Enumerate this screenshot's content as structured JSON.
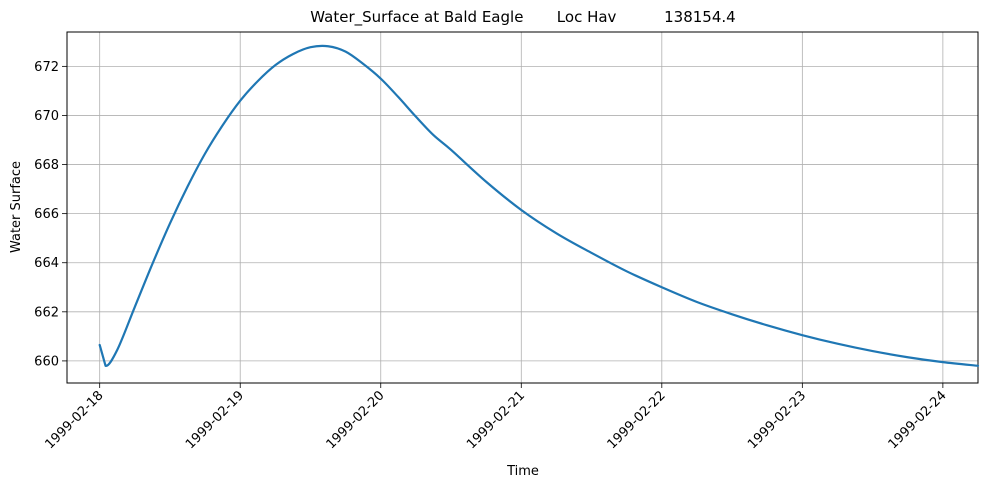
{
  "chart_data": {
    "type": "line",
    "title": "Water_Surface at Bald Eagle       Loc Hav          138154.4",
    "xlabel": "Time",
    "ylabel": "Water Surface",
    "xlim": [
      "1999-02-17T18:25",
      "1999-02-24T06:00"
    ],
    "ylim": [
      659.1,
      673.4
    ],
    "grid": true,
    "line_color": "#1f77b4",
    "x_ticks": [
      "1999-02-18",
      "1999-02-19",
      "1999-02-20",
      "1999-02-21",
      "1999-02-22",
      "1999-02-23",
      "1999-02-24"
    ],
    "y_ticks": [
      660,
      662,
      664,
      666,
      668,
      670,
      672
    ],
    "series": [
      {
        "x": [
          "1999-02-18T00:00",
          "1999-02-18T01:00",
          "1999-02-18T03:00",
          "1999-02-18T06:00",
          "1999-02-18T09:00",
          "1999-02-18T12:00",
          "1999-02-18T15:00",
          "1999-02-18T18:00",
          "1999-02-18T21:00",
          "1999-02-19T00:00",
          "1999-02-19T03:00",
          "1999-02-19T06:00",
          "1999-02-19T09:00",
          "1999-02-19T12:00",
          "1999-02-19T15:00",
          "1999-02-19T18:00",
          "1999-02-19T21:00",
          "1999-02-20T00:00",
          "1999-02-20T03:00",
          "1999-02-20T06:00",
          "1999-02-20T09:00",
          "1999-02-20T12:00",
          "1999-02-20T18:00",
          "1999-02-21T00:00",
          "1999-02-21T06:00",
          "1999-02-21T12:00",
          "1999-02-21T18:00",
          "1999-02-22T00:00",
          "1999-02-22T06:00",
          "1999-02-22T12:00",
          "1999-02-22T18:00",
          "1999-02-23T00:00",
          "1999-02-23T06:00",
          "1999-02-23T12:00",
          "1999-02-23T18:00",
          "1999-02-24T00:00",
          "1999-02-24T06:00"
        ],
        "y": [
          660.65,
          659.8,
          660.45,
          662.2,
          663.95,
          665.6,
          667.1,
          668.45,
          669.6,
          670.6,
          671.4,
          672.05,
          672.5,
          672.78,
          672.82,
          672.6,
          672.1,
          671.5,
          670.75,
          669.95,
          669.2,
          668.6,
          667.3,
          666.15,
          665.2,
          664.4,
          663.65,
          663.0,
          662.4,
          661.9,
          661.45,
          661.05,
          660.7,
          660.4,
          660.15,
          659.95,
          659.8
        ]
      }
    ]
  }
}
